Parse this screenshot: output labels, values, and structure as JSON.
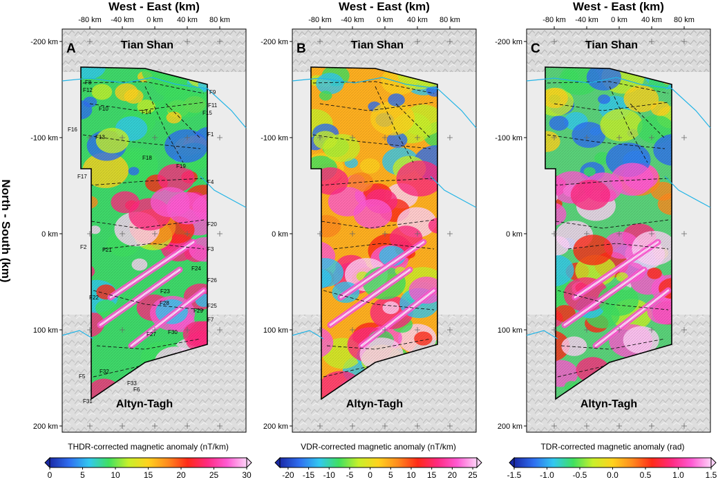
{
  "figure": {
    "y_axis_title": "North - South (km)",
    "panels": [
      {
        "letter": "A",
        "x_axis_title": "West - East (km)",
        "x_ticks": [
          "-80 km",
          "-40 km",
          "0 km",
          "40 km",
          "80 km"
        ],
        "y_ticks": [
          "-200 km",
          "-100 km",
          "0 km",
          "100 km",
          "200 km"
        ],
        "north_label": "Tian Shan",
        "south_label": "Altyn-Tagh",
        "colorbar": {
          "title": "THDR-corrected magnetic anomaly (nT/km)",
          "ticks": [
            "0",
            "5",
            "10",
            "15",
            "20",
            "25",
            "30"
          ],
          "range": [
            0,
            30
          ]
        },
        "fault_labels": [
          "F8",
          "F12",
          "F9",
          "F11",
          "F10",
          "F14",
          "F15",
          "F16",
          "F1",
          "F13",
          "F18",
          "F19",
          "F17",
          "F4",
          "F20",
          "F2",
          "F21",
          "F3",
          "F24",
          "F26",
          "F23",
          "F22",
          "F28",
          "F25",
          "F29",
          "F7",
          "F27",
          "F30",
          "F32",
          "F5",
          "F33",
          "F6",
          "F31"
        ]
      },
      {
        "letter": "B",
        "x_axis_title": "West - East (km)",
        "x_ticks": [
          "-80 km",
          "-40 km",
          "0 km",
          "40 km",
          "80 km"
        ],
        "y_ticks": [
          "-200 km",
          "-100 km",
          "0 km",
          "100 km",
          "200 km"
        ],
        "north_label": "Tian Shan",
        "south_label": "Altyn-Tagh",
        "colorbar": {
          "title": "VDR-corrected magnetic anomaly (nT/km)",
          "ticks": [
            "-20",
            "-15",
            "-10",
            "-5",
            "0",
            "5",
            "10",
            "15",
            "20",
            "25"
          ],
          "range": [
            -22,
            26
          ]
        }
      },
      {
        "letter": "C",
        "x_axis_title": "West - East (km)",
        "x_ticks": [
          "-80 km",
          "-40 km",
          "0 km",
          "40 km",
          "80 km"
        ],
        "y_ticks": [
          "-200 km",
          "-100 km",
          "0 km",
          "100 km",
          "200 km"
        ],
        "north_label": "Tian Shan",
        "south_label": "Altyn-Tagh",
        "colorbar": {
          "title": "TDR-corrected magnetic anomaly (rad)",
          "ticks": [
            "-1.5",
            "-1.0",
            "-0.5",
            "0.0",
            "0.5",
            "1.0",
            "1.5"
          ],
          "range": [
            -1.5,
            1.5
          ]
        }
      }
    ],
    "colors": {
      "river": "#22b4e6",
      "relief": "#d4d4d4",
      "colormap": [
        "#1a2aa8",
        "#2f6ff0",
        "#32c8f0",
        "#3fe060",
        "#c8f02a",
        "#ffd21e",
        "#ff8a1e",
        "#ff2a18",
        "#ff2a80",
        "#ff5ad2",
        "#ffd2f8"
      ]
    }
  }
}
